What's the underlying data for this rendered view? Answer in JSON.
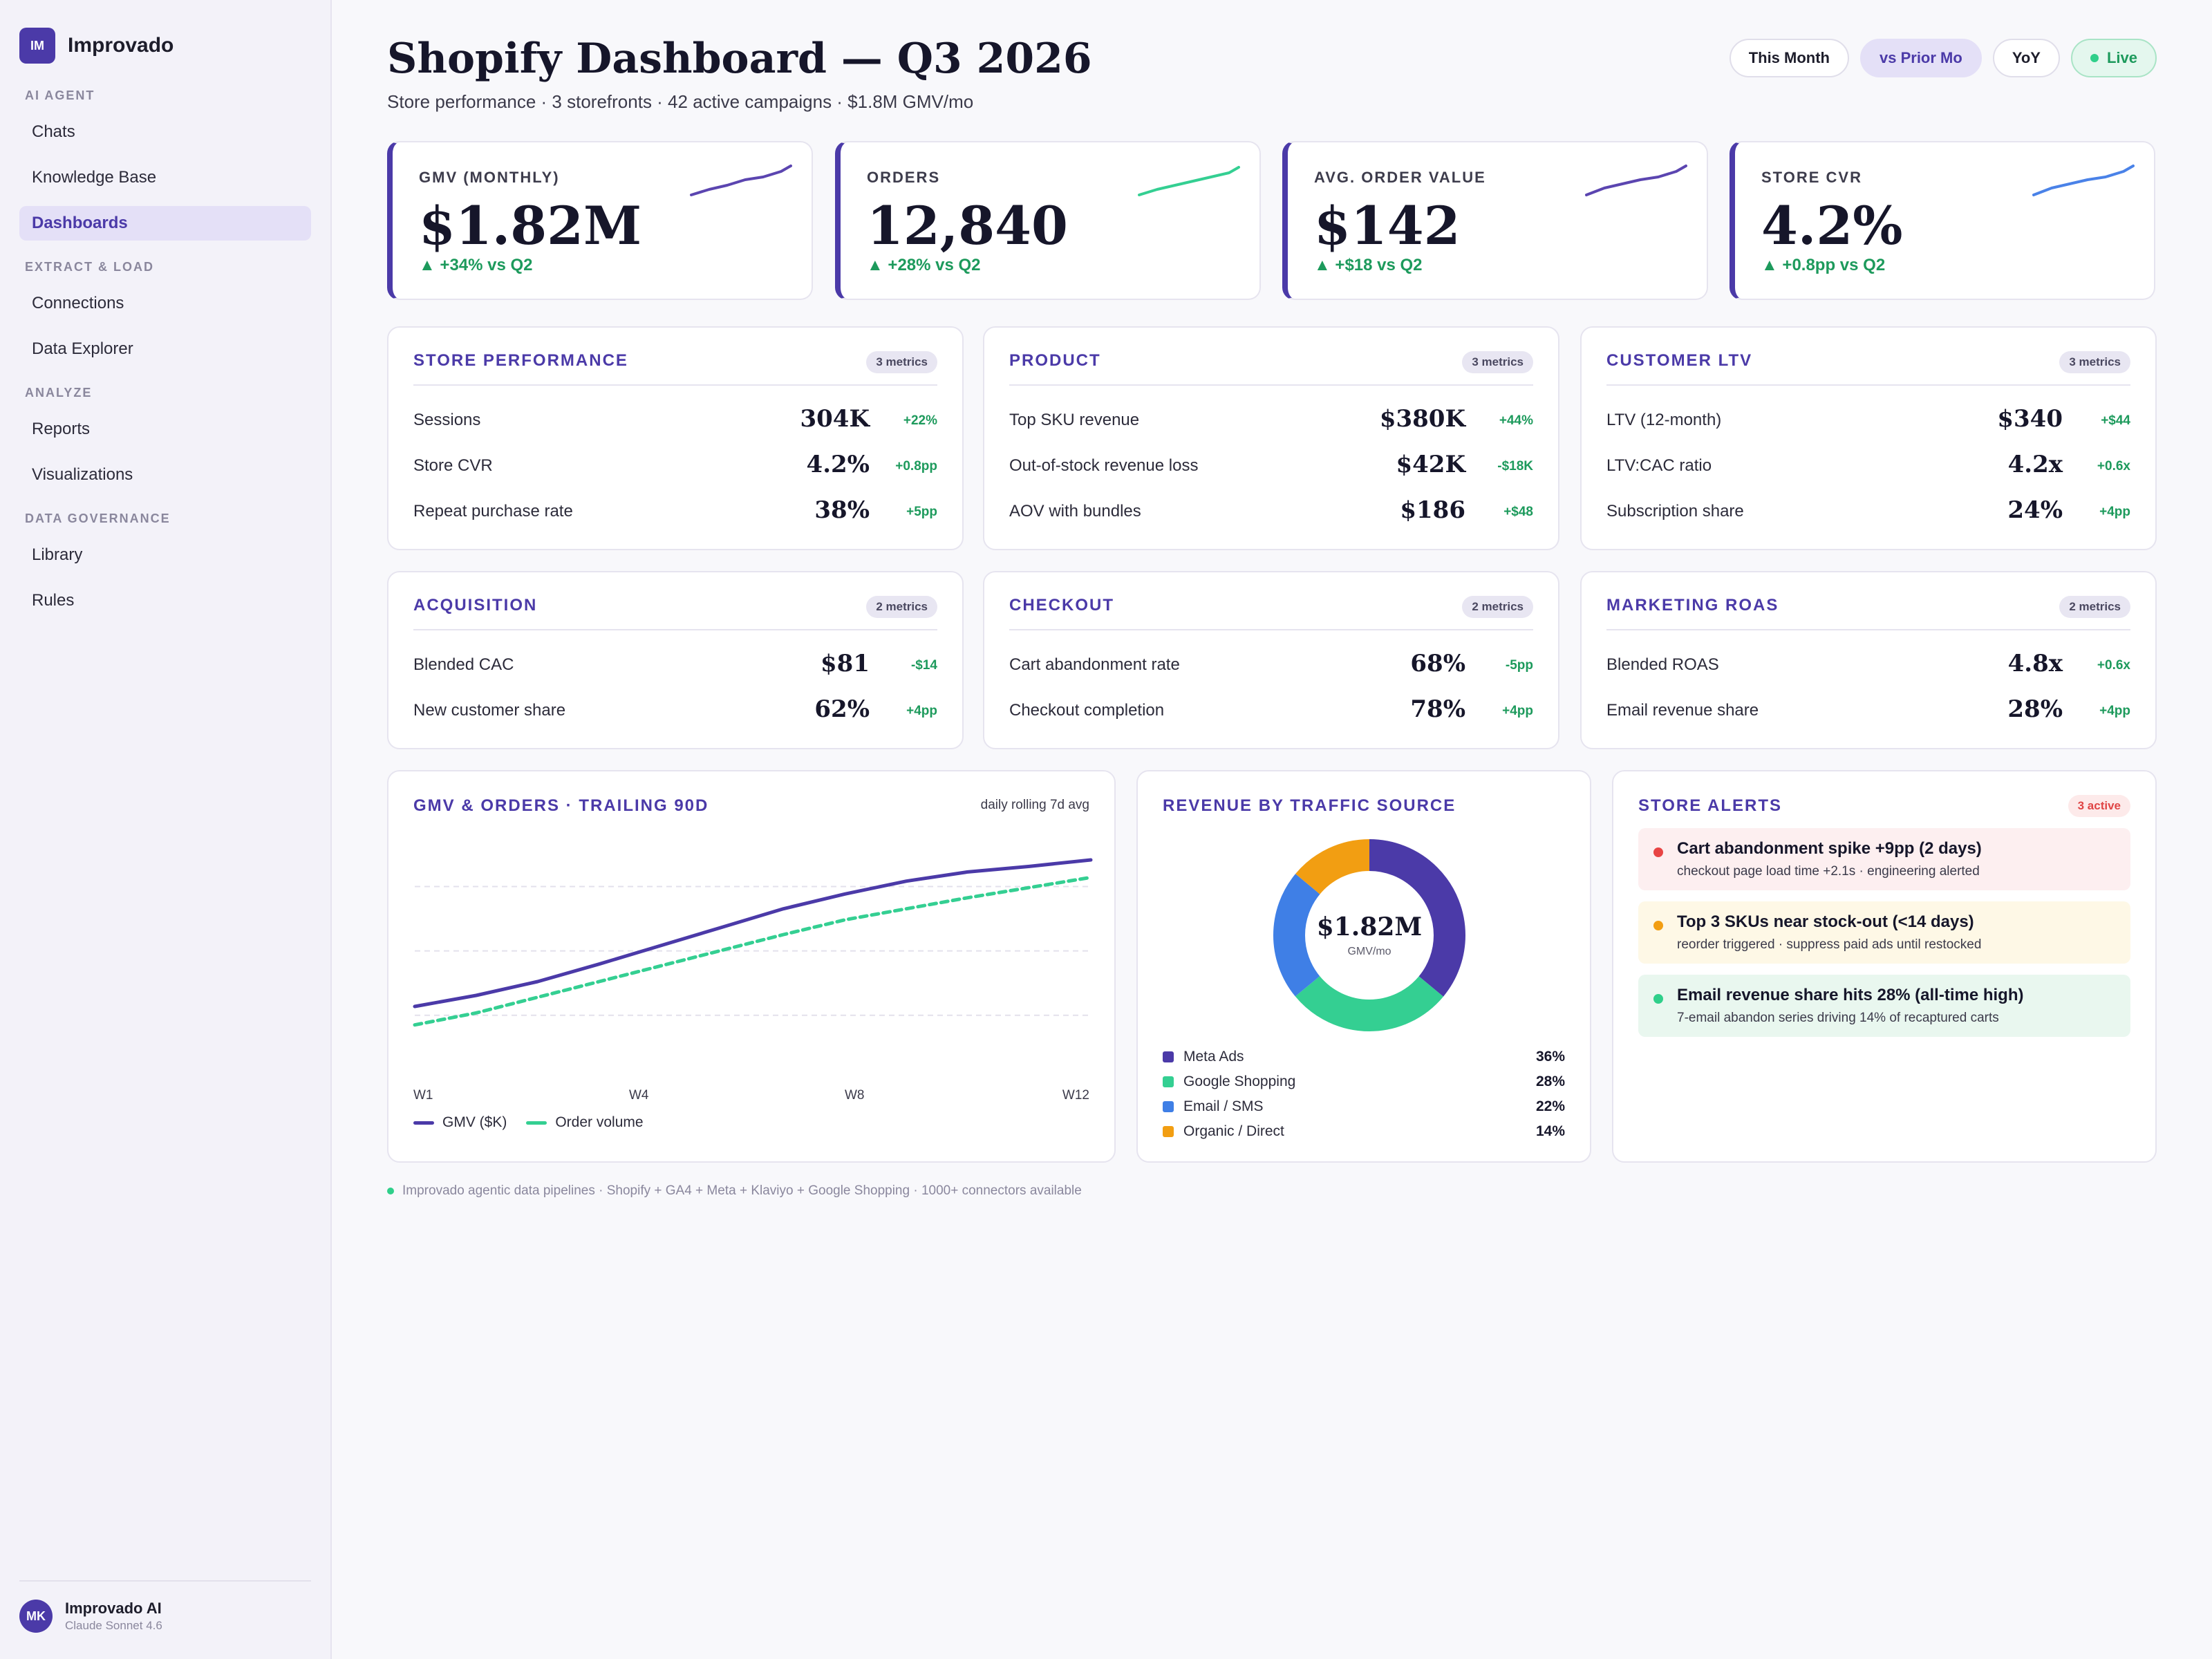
{
  "sidebar": {
    "brand": {
      "logo": "IM",
      "name": "Improvado"
    },
    "sections": [
      {
        "title": "AI AGENT",
        "items": [
          {
            "label": "Chats"
          },
          {
            "label": "Knowledge Base"
          },
          {
            "label": "Dashboards",
            "active": true
          }
        ]
      },
      {
        "title": "EXTRACT & LOAD",
        "items": [
          {
            "label": "Connections"
          },
          {
            "label": "Data Explorer"
          }
        ]
      },
      {
        "title": "ANALYZE",
        "items": [
          {
            "label": "Reports"
          },
          {
            "label": "Visualizations"
          }
        ]
      },
      {
        "title": "DATA GOVERNANCE",
        "items": [
          {
            "label": "Library"
          },
          {
            "label": "Rules"
          }
        ]
      }
    ],
    "user": {
      "initials": "MK",
      "name": "Improvado AI",
      "model": "Claude Sonnet 4.6"
    }
  },
  "header": {
    "title": "Shopify Dashboard — Q3 2026",
    "subtitle": "Store performance · 3 storefronts · 42 active campaigns · $1.8M GMV/mo",
    "controls": [
      "This Month",
      "vs Prior Mo",
      "YoY",
      "Live"
    ],
    "selected_control": "vs Prior Mo"
  },
  "kpis": [
    {
      "label": "GMV (MONTHLY)",
      "value": "$1.82M",
      "delta": "▲ +34% vs Q2",
      "spark_color": "#5b45b0"
    },
    {
      "label": "ORDERS",
      "value": "12,840",
      "delta": "▲ +28% vs Q2",
      "spark_color": "#34cf92"
    },
    {
      "label": "AVG. ORDER VALUE",
      "value": "$142",
      "delta": "▲ +$18 vs Q2",
      "spark_color": "#5b45b0"
    },
    {
      "label": "STORE CVR",
      "value": "4.2%",
      "delta": "▲ +0.8pp vs Q2",
      "spark_color": "#4a82e8"
    }
  ],
  "panels": [
    {
      "title": "STORE PERFORMANCE",
      "badge": "3 metrics",
      "rows": [
        {
          "label": "Sessions",
          "value": "304K",
          "delta": "+22%"
        },
        {
          "label": "Store CVR",
          "value": "4.2%",
          "delta": "+0.8pp"
        },
        {
          "label": "Repeat purchase rate",
          "value": "38%",
          "delta": "+5pp"
        }
      ]
    },
    {
      "title": "PRODUCT",
      "badge": "3 metrics",
      "rows": [
        {
          "label": "Top SKU revenue",
          "value": "$380K",
          "delta": "+44%"
        },
        {
          "label": "Out-of-stock revenue loss",
          "value": "$42K",
          "delta": "-$18K"
        },
        {
          "label": "AOV with bundles",
          "value": "$186",
          "delta": "+$48"
        }
      ]
    },
    {
      "title": "CUSTOMER LTV",
      "badge": "3 metrics",
      "rows": [
        {
          "label": "LTV (12-month)",
          "value": "$340",
          "delta": "+$44"
        },
        {
          "label": "LTV:CAC ratio",
          "value": "4.2x",
          "delta": "+0.6x"
        },
        {
          "label": "Subscription share",
          "value": "24%",
          "delta": "+4pp"
        }
      ]
    },
    {
      "title": "ACQUISITION",
      "badge": "2 metrics",
      "rows": [
        {
          "label": "Blended CAC",
          "value": "$81",
          "delta": "-$14"
        },
        {
          "label": "New customer share",
          "value": "62%",
          "delta": "+4pp"
        }
      ]
    },
    {
      "title": "CHECKOUT",
      "badge": "2 metrics",
      "rows": [
        {
          "label": "Cart abandonment rate",
          "value": "68%",
          "delta": "-5pp"
        },
        {
          "label": "Checkout completion",
          "value": "78%",
          "delta": "+4pp"
        }
      ]
    },
    {
      "title": "MARKETING ROAS",
      "badge": "2 metrics",
      "rows": [
        {
          "label": "Blended ROAS",
          "value": "4.8x",
          "delta": "+0.6x"
        },
        {
          "label": "Email revenue share",
          "value": "28%",
          "delta": "+4pp"
        }
      ]
    }
  ],
  "trend": {
    "title": "GMV & ORDERS · TRAILING 90D",
    "note": "daily rolling 7d avg",
    "x_ticks": [
      "W1",
      "W4",
      "W8",
      "W12"
    ],
    "legend": [
      "GMV ($K)",
      "Order volume"
    ]
  },
  "traffic": {
    "title": "REVENUE BY TRAFFIC SOURCE",
    "center_value": "$1.82M",
    "center_sub": "GMV/mo",
    "sources": [
      {
        "name": "Meta Ads",
        "pct": "36%",
        "color": "#4b3aa8"
      },
      {
        "name": "Google Shopping",
        "pct": "28%",
        "color": "#34cf92"
      },
      {
        "name": "Email / SMS",
        "pct": "22%",
        "color": "#3f7fe6"
      },
      {
        "name": "Organic / Direct",
        "pct": "14%",
        "color": "#f29e12"
      }
    ]
  },
  "alerts": {
    "title": "STORE ALERTS",
    "badge": "3 active",
    "items": [
      {
        "title": "Cart abandonment spike +9pp (2 days)",
        "sub": "checkout page load time +2.1s · engineering alerted",
        "severity": "critical",
        "color": "#e84444",
        "bg": "#fdeff0"
      },
      {
        "title": "Top 3 SKUs near stock-out (<14 days)",
        "sub": "reorder triggered · suppress paid ads until restocked",
        "severity": "warning",
        "color": "#f29e12",
        "bg": "#fef8e6"
      },
      {
        "title": "Email revenue share hits 28% (all-time high)",
        "sub": "7-email abandon series driving 14% of recaptured carts",
        "severity": "positive",
        "color": "#2fcf8a",
        "bg": "#e9f7ef"
      }
    ]
  },
  "footer": {
    "note": "Improvado agentic data pipelines · Shopify + GA4 + Meta + Klaviyo + Google Shopping · 1000+ connectors available"
  },
  "chart_data": [
    {
      "type": "line",
      "title": "GMV & ORDERS · TRAILING 90D",
      "subtitle": "daily rolling 7d avg",
      "x": [
        1,
        2,
        3,
        4,
        5,
        6,
        7,
        8,
        9,
        10,
        11,
        12
      ],
      "x_ticks": [
        "W1",
        "W4",
        "W8",
        "W12"
      ],
      "xlim": [
        1,
        12
      ],
      "grid": true,
      "legend_position": "bottom-left",
      "series": [
        {
          "name": "GMV ($K)",
          "color": "#4b3aa8",
          "style": "solid",
          "values": [
            0.0,
            0.12,
            0.27,
            0.46,
            0.66,
            0.86,
            1.06,
            1.22,
            1.36,
            1.46,
            1.52,
            1.59
          ]
        },
        {
          "name": "Order volume",
          "color": "#34cf92",
          "style": "dashed",
          "values": [
            -0.2,
            -0.07,
            0.1,
            0.27,
            0.44,
            0.61,
            0.78,
            0.94,
            1.06,
            1.18,
            1.29,
            1.4
          ]
        }
      ]
    },
    {
      "type": "pie",
      "title": "REVENUE BY TRAFFIC SOURCE",
      "categories": [
        "Meta Ads",
        "Google Shopping",
        "Email / SMS",
        "Organic / Direct"
      ],
      "values": [
        36,
        28,
        22,
        14
      ],
      "colors": [
        "#4b3aa8",
        "#34cf92",
        "#3f7fe6",
        "#f29e12"
      ]
    }
  ]
}
